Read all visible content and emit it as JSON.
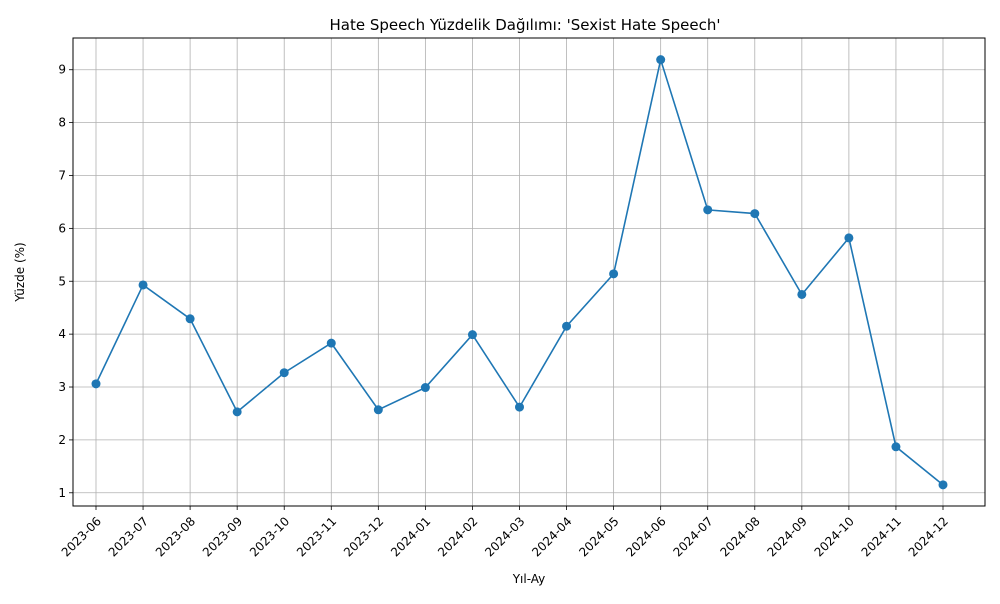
{
  "chart_data": {
    "type": "line",
    "title": "Hate Speech Yüzdelik Dağılımı: 'Sexist Hate Speech'",
    "xlabel": "Yıl-Ay",
    "ylabel": "Yüzde (%)",
    "categories": [
      "2023-06",
      "2023-07",
      "2023-08",
      "2023-09",
      "2023-10",
      "2023-11",
      "2023-12",
      "2024-01",
      "2024-02",
      "2024-03",
      "2024-04",
      "2024-05",
      "2024-06",
      "2024-07",
      "2024-08",
      "2024-09",
      "2024-10",
      "2024-11",
      "2024-12"
    ],
    "values": [
      3.06,
      4.93,
      4.29,
      2.53,
      3.27,
      3.83,
      2.57,
      2.99,
      3.99,
      2.62,
      4.15,
      5.14,
      9.19,
      6.35,
      6.28,
      4.75,
      5.82,
      1.87,
      1.15
    ],
    "yticks": [
      1,
      2,
      3,
      4,
      5,
      6,
      7,
      8,
      9
    ],
    "ylim": [
      0.75,
      9.6
    ],
    "grid": true,
    "marker": "circle",
    "color": "#1f77b4"
  }
}
